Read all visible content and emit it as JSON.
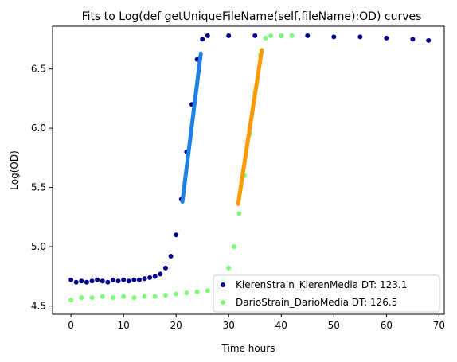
{
  "chart_data": {
    "type": "scatter",
    "title": "Fits to Log(def getUniqueFileName(self,fileName):OD) curves",
    "xlabel": "Time hours",
    "ylabel": "Log(OD)",
    "xlim": [
      -3.5,
      71
    ],
    "ylim": [
      4.43,
      6.86
    ],
    "xticks": [
      0,
      10,
      20,
      30,
      40,
      50,
      60,
      70
    ],
    "yticks": [
      4.5,
      5.0,
      5.5,
      6.0,
      6.5
    ],
    "ytick_labels": [
      "4.5",
      "5.0",
      "5.5",
      "6.0",
      "6.5"
    ],
    "grid": false,
    "legend_position": "lower-right",
    "series": [
      {
        "name": "KierenStrain_KierenMedia DT: 123.1",
        "color": "#00008b",
        "fit_color": "#1e7fe6",
        "points": [
          [
            0.0,
            4.72
          ],
          [
            1.0,
            4.7
          ],
          [
            2.0,
            4.71
          ],
          [
            3.0,
            4.7
          ],
          [
            4.0,
            4.71
          ],
          [
            5.0,
            4.72
          ],
          [
            6.0,
            4.71
          ],
          [
            7.0,
            4.7
          ],
          [
            8.0,
            4.72
          ],
          [
            9.0,
            4.71
          ],
          [
            10.0,
            4.72
          ],
          [
            11.0,
            4.71
          ],
          [
            12.0,
            4.72
          ],
          [
            13.0,
            4.72
          ],
          [
            14.0,
            4.73
          ],
          [
            15.0,
            4.74
          ],
          [
            16.0,
            4.75
          ],
          [
            17.0,
            4.77
          ],
          [
            18.0,
            4.82
          ],
          [
            19.0,
            4.92
          ],
          [
            20.0,
            5.1
          ],
          [
            21.0,
            5.4
          ],
          [
            22.0,
            5.8
          ],
          [
            23.0,
            6.2
          ],
          [
            24.0,
            6.58
          ],
          [
            25.0,
            6.75
          ],
          [
            26.0,
            6.78
          ],
          [
            30.0,
            6.78
          ],
          [
            35.0,
            6.78
          ],
          [
            40.0,
            6.78
          ],
          [
            45.0,
            6.78
          ],
          [
            50.0,
            6.77
          ],
          [
            55.0,
            6.77
          ],
          [
            60.0,
            6.76
          ],
          [
            65.0,
            6.75
          ],
          [
            68.0,
            6.74
          ]
        ],
        "fit_x": [
          21.2,
          24.7
        ],
        "fit_y": [
          5.38,
          6.63
        ]
      },
      {
        "name": "DarioStrain_DarioMedia DT: 126.5",
        "color": "#7cfc78",
        "fit_color": "#ff9900",
        "points": [
          [
            0.0,
            4.55
          ],
          [
            2.0,
            4.57
          ],
          [
            4.0,
            4.57
          ],
          [
            6.0,
            4.58
          ],
          [
            8.0,
            4.57
          ],
          [
            10.0,
            4.58
          ],
          [
            12.0,
            4.57
          ],
          [
            14.0,
            4.58
          ],
          [
            16.0,
            4.58
          ],
          [
            18.0,
            4.59
          ],
          [
            20.0,
            4.6
          ],
          [
            22.0,
            4.61
          ],
          [
            24.0,
            4.62
          ],
          [
            26.0,
            4.63
          ],
          [
            28.0,
            4.66
          ],
          [
            29.0,
            4.72
          ],
          [
            30.0,
            4.82
          ],
          [
            31.0,
            5.0
          ],
          [
            32.0,
            5.28
          ],
          [
            33.0,
            5.6
          ],
          [
            34.0,
            5.95
          ],
          [
            35.0,
            6.3
          ],
          [
            36.0,
            6.62
          ],
          [
            37.0,
            6.76
          ],
          [
            38.0,
            6.78
          ],
          [
            40.0,
            6.78
          ],
          [
            42.0,
            6.78
          ]
        ],
        "fit_x": [
          31.8,
          36.3
        ],
        "fit_y": [
          5.36,
          6.66
        ]
      }
    ]
  }
}
